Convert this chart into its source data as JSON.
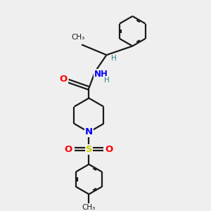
{
  "bg_color": "#efefef",
  "bond_color": "#1a1a1a",
  "N_color": "#0000ff",
  "O_color": "#ff0000",
  "S_color": "#cccc00",
  "H_color": "#2a8080",
  "line_width": 1.6,
  "dbo": 0.08,
  "figsize": [
    3.0,
    3.0
  ],
  "dpi": 100,
  "xlim": [
    0,
    10
  ],
  "ylim": [
    0,
    10
  ]
}
